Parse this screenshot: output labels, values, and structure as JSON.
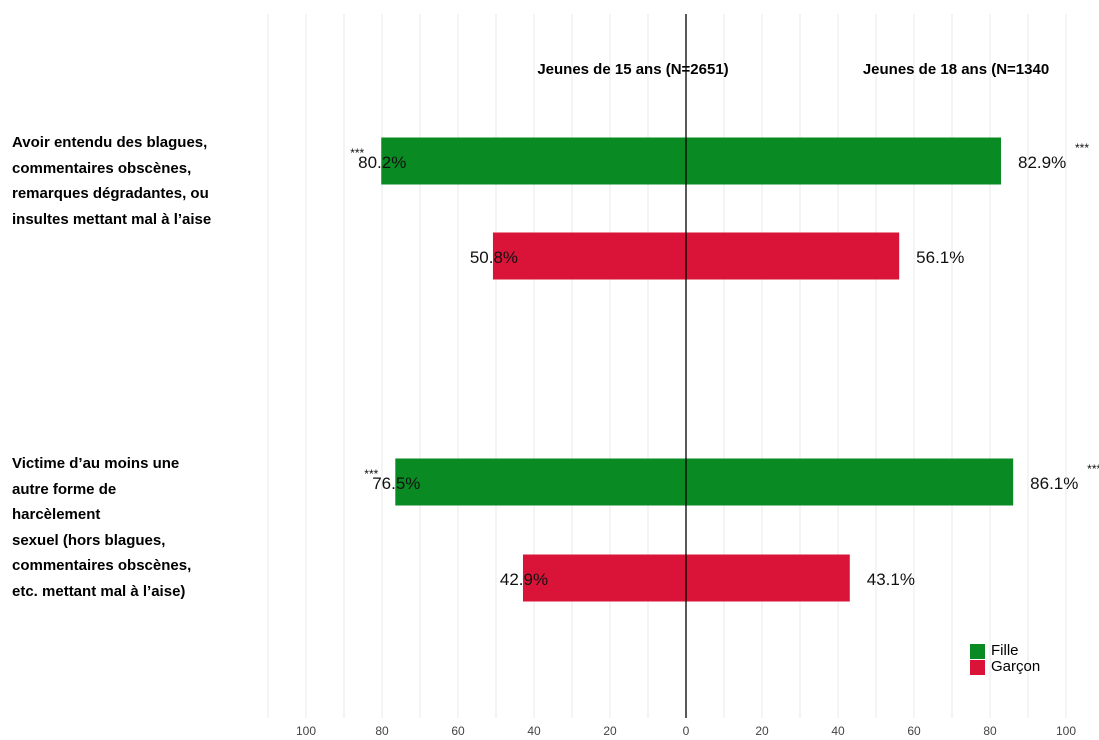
{
  "colors": {
    "fille": "#0a8a22",
    "garcon": "#d91438",
    "grid": "#e8e8e8",
    "axis": "#000000"
  },
  "chart_data": {
    "type": "bar",
    "orientation": "horizontal-diverging",
    "panels": [
      {
        "title": "Jeunes de 15 ans (N=2651)",
        "side": "left"
      },
      {
        "title": "Jeunes de 18 ans (N=1340",
        "side": "right"
      }
    ],
    "categories": [
      "Avoir entendu des blagues,\ncommentaires obscènes,\nremarques dégradantes, ou\ninsultes mettant mal à l’aise",
      "Victime d’au moins une\nautre forme de\nharcèlement\nsexuel (hors blagues,\ncommentaires obscènes,\netc. mettant mal à l’aise)"
    ],
    "series": [
      {
        "name": "Fille",
        "color": "#0a8a22",
        "left_values": [
          80.2,
          76.5
        ],
        "right_values": [
          82.9,
          86.1
        ],
        "left_labels": [
          "80.2%",
          "76.5%"
        ],
        "right_labels": [
          "82.9%",
          "86.1%"
        ],
        "left_sig": [
          "***",
          "***"
        ],
        "right_sig": [
          "***",
          "***"
        ]
      },
      {
        "name": "Garçon",
        "color": "#d91438",
        "left_values": [
          50.8,
          42.9
        ],
        "right_values": [
          56.1,
          43.1
        ],
        "left_labels": [
          "50.8%",
          "42.9%"
        ],
        "right_labels": [
          "56.1%",
          "43.1%"
        ],
        "left_sig": [
          "",
          ""
        ],
        "right_sig": [
          "",
          ""
        ]
      }
    ],
    "xlim": [
      -100,
      100
    ],
    "x_ticks": [
      -100,
      -80,
      -60,
      -40,
      -20,
      0,
      20,
      40,
      60,
      80,
      100
    ],
    "x_tick_labels": [
      "100",
      "80",
      "60",
      "40",
      "20",
      "0",
      "20",
      "40",
      "60",
      "80",
      "100"
    ],
    "grid": true,
    "legend": {
      "position": "bottom-right",
      "entries": [
        "Fille",
        "Garçon"
      ]
    }
  }
}
